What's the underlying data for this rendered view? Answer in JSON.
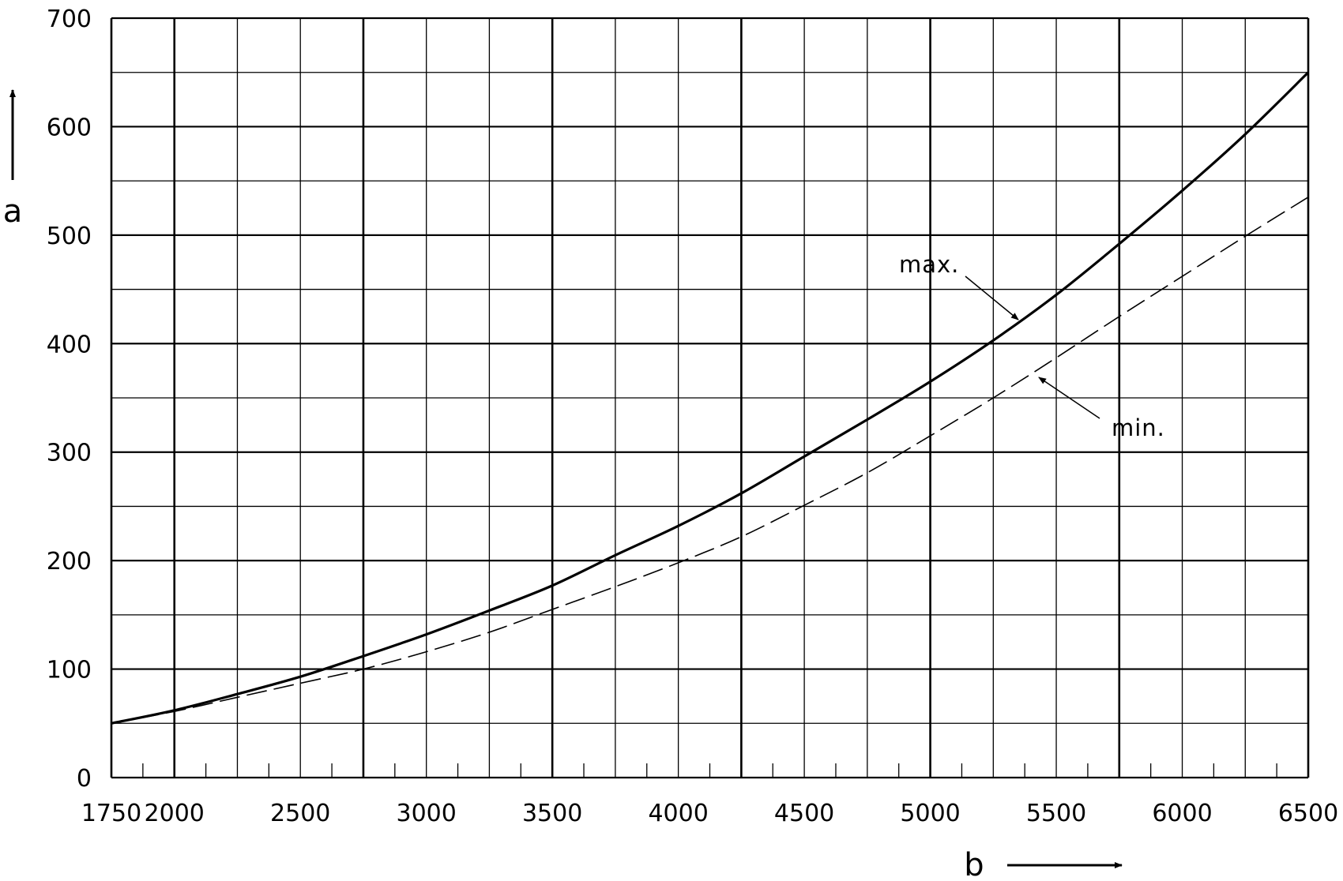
{
  "chart_data": {
    "type": "line",
    "xlabel": "b",
    "ylabel": "a",
    "xlim": [
      1750,
      6500
    ],
    "ylim": [
      0,
      700
    ],
    "x_ticks": [
      "1750",
      "2000",
      "2500",
      "3000",
      "3500",
      "4000",
      "4500",
      "5000",
      "5500",
      "6000",
      "6500"
    ],
    "y_ticks": [
      "0",
      "100",
      "200",
      "300",
      "400",
      "500",
      "600",
      "700"
    ],
    "grid": true,
    "series": [
      {
        "name": "max.",
        "line_style": "solid",
        "x": [
          1750,
          2000,
          2250,
          2500,
          2750,
          3000,
          3250,
          3500,
          3750,
          4000,
          4250,
          4500,
          4750,
          5000,
          5250,
          5500,
          5750,
          6000,
          6250,
          6500
        ],
        "y": [
          50,
          62,
          77,
          93,
          112,
          132,
          154,
          177,
          205,
          232,
          262,
          296,
          330,
          365,
          403,
          445,
          492,
          541,
          593,
          650
        ]
      },
      {
        "name": "min.",
        "line_style": "dashed",
        "x": [
          1750,
          2000,
          2250,
          2500,
          2750,
          3000,
          3250,
          3500,
          3750,
          4000,
          4250,
          4500,
          4750,
          5000,
          5250,
          5500,
          5750,
          6000,
          6250,
          6500
        ],
        "y": [
          50,
          61,
          74,
          87,
          100,
          116,
          134,
          155,
          176,
          198,
          222,
          251,
          281,
          315,
          350,
          387,
          425,
          462,
          499,
          535
        ]
      }
    ],
    "annotations": [
      {
        "text": "max.",
        "series": "max."
      },
      {
        "text": "min.",
        "series": "min."
      }
    ]
  }
}
